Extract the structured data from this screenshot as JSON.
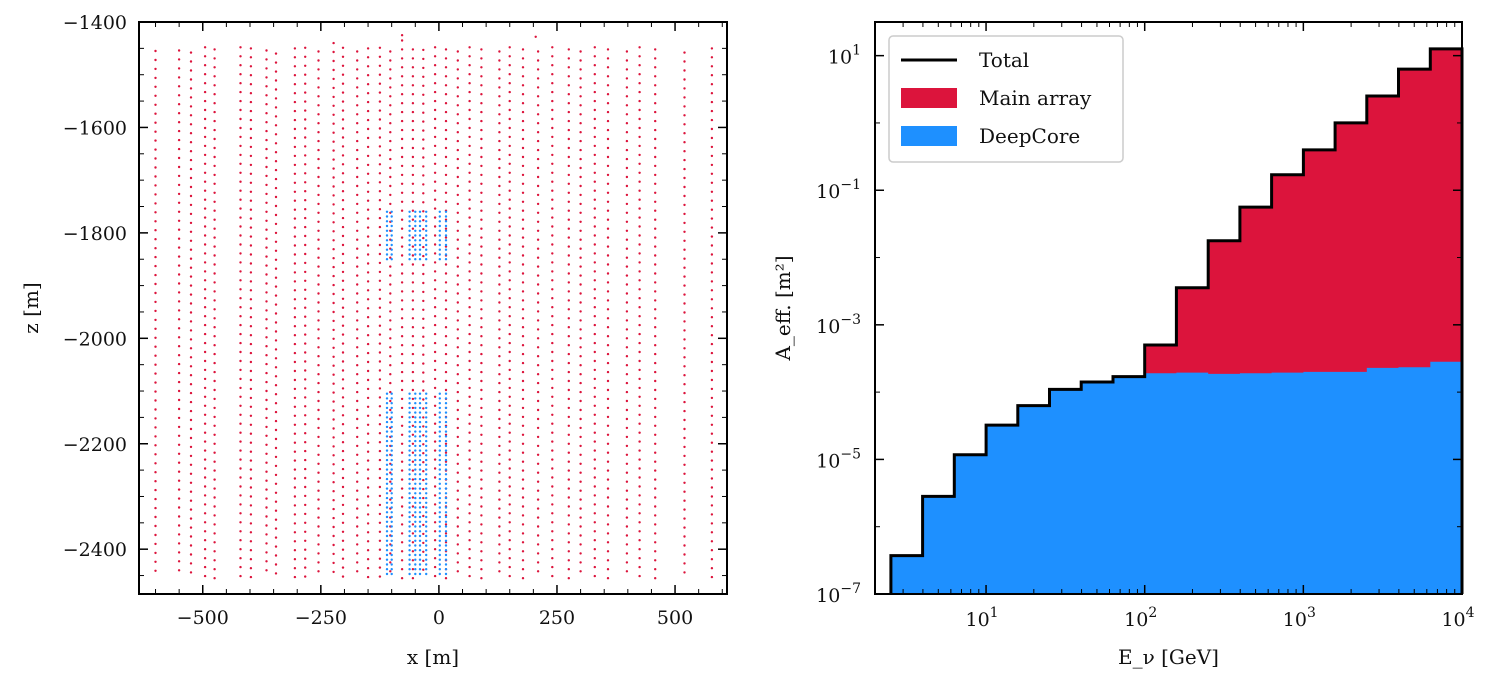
{
  "chart_data": [
    {
      "type": "scatter",
      "title": "",
      "xlabel": "x  [m]",
      "ylabel": "z  [m]",
      "xlim": [
        -635,
        610
      ],
      "ylim": [
        -2485,
        -1400
      ],
      "xticks": [
        -500,
        -250,
        0,
        250,
        500
      ],
      "xtick_labels": [
        "−500",
        "−250",
        "0",
        "250",
        "500"
      ],
      "yticks": [
        -1400,
        -1600,
        -1800,
        -2000,
        -2200,
        -2400
      ],
      "ytick_labels": [
        "−1400",
        "−1600",
        "−1800",
        "−2000",
        "−2200",
        "−2400"
      ],
      "main_array": {
        "color": "#dc143c",
        "z_bottom": -2455,
        "dom_spacing": 17,
        "strings": [
          {
            "x": -600,
            "z_top": -1455
          },
          {
            "x": -550,
            "z_top": -1450
          },
          {
            "x": -525,
            "z_top": -1450
          },
          {
            "x": -495,
            "z_top": -1448
          },
          {
            "x": -475,
            "z_top": -1448
          },
          {
            "x": -420,
            "z_top": -1440
          },
          {
            "x": -398,
            "z_top": -1450
          },
          {
            "x": -365,
            "z_top": -1450
          },
          {
            "x": -345,
            "z_top": -1452
          },
          {
            "x": -305,
            "z_top": -1450
          },
          {
            "x": -283,
            "z_top": -1445
          },
          {
            "x": -255,
            "z_top": -1448
          },
          {
            "x": -223,
            "z_top": -1440
          },
          {
            "x": -203,
            "z_top": -1445
          },
          {
            "x": -173,
            "z_top": -1448
          },
          {
            "x": -150,
            "z_top": -1450
          },
          {
            "x": -125,
            "z_top": -1445
          },
          {
            "x": -103,
            "z_top": -1448
          },
          {
            "x": -78,
            "z_top": -1435
          },
          {
            "x": -55,
            "z_top": -1448
          },
          {
            "x": -33,
            "z_top": -1445
          },
          {
            "x": -8,
            "z_top": -1448
          },
          {
            "x": 15,
            "z_top": -1448
          },
          {
            "x": 40,
            "z_top": -1448
          },
          {
            "x": 65,
            "z_top": -1448
          },
          {
            "x": 90,
            "z_top": -1448
          },
          {
            "x": 128,
            "z_top": -1448
          },
          {
            "x": 150,
            "z_top": -1448
          },
          {
            "x": 178,
            "z_top": -1448
          },
          {
            "x": 210,
            "z_top": -1448
          },
          {
            "x": 240,
            "z_top": -1448
          },
          {
            "x": 275,
            "z_top": -1448
          },
          {
            "x": 300,
            "z_top": -1448
          },
          {
            "x": 330,
            "z_top": -1448
          },
          {
            "x": 358,
            "z_top": -1448
          },
          {
            "x": 398,
            "z_top": -1448
          },
          {
            "x": 425,
            "z_top": -1448
          },
          {
            "x": 458,
            "z_top": -1448
          },
          {
            "x": 520,
            "z_top": -1450
          },
          {
            "x": 578,
            "z_top": -1450
          }
        ],
        "extra_points": [
          {
            "x": -78,
            "z": -1425
          },
          {
            "x": 205,
            "z": -1428
          }
        ]
      },
      "deepcore": {
        "color": "#1e90ff",
        "x": [
          -110,
          -100,
          -62,
          -50,
          -40,
          -27,
          2,
          15
        ],
        "upper_range": [
          -1760,
          -1850
        ],
        "lower_range": [
          -2105,
          -2455
        ],
        "dom_spacing": 9
      }
    },
    {
      "type": "step",
      "title": "",
      "xlabel": "E_ν  [GeV]",
      "ylabel": "A_eff.  [m²]",
      "xscale": "log",
      "yscale": "log",
      "xlim_log10": [
        0.3,
        4.0
      ],
      "ylim_log10": [
        -7,
        1.5
      ],
      "xticks_log10": [
        1,
        2,
        3,
        4
      ],
      "yticks_log10": [
        -7,
        -5,
        -3,
        -1,
        1
      ],
      "x_tick_base": "10",
      "x_tick_exponents": [
        "1",
        "2",
        "3",
        "4"
      ],
      "y_tick_base": "10",
      "y_tick_exponents": [
        "−7",
        "−5",
        "−3",
        "−1",
        "1"
      ],
      "bin_edges_log10": [
        0.4,
        0.6,
        0.8,
        1.0,
        1.2,
        1.4,
        1.6,
        1.8,
        2.0,
        2.2,
        2.4,
        2.6,
        2.8,
        3.0,
        3.2,
        3.4,
        3.6,
        3.8,
        4.0
      ],
      "series": [
        {
          "name": "Total",
          "color": "#000000",
          "log10_values": [
            -6.43,
            -5.55,
            -4.93,
            -4.49,
            -4.2,
            -3.96,
            -3.85,
            -3.77,
            -3.3,
            -2.45,
            -1.75,
            -1.25,
            -0.77,
            -0.4,
            0.0,
            0.4,
            0.8,
            1.1
          ]
        },
        {
          "name": "Main array",
          "color": "#dc143c",
          "log10_values": [
            -6.43,
            -5.55,
            -4.93,
            -4.49,
            -4.2,
            -3.96,
            -3.85,
            -3.77,
            -3.3,
            -2.45,
            -1.75,
            -1.25,
            -0.77,
            -0.4,
            0.0,
            0.4,
            0.8,
            1.1
          ]
        },
        {
          "name": "DeepCore",
          "color": "#1e90ff",
          "log10_values": [
            -6.43,
            -5.55,
            -4.93,
            -4.49,
            -4.2,
            -3.96,
            -3.85,
            -3.77,
            -3.72,
            -3.71,
            -3.73,
            -3.72,
            -3.71,
            -3.7,
            -3.7,
            -3.64,
            -3.63,
            -3.55
          ]
        }
      ],
      "legend": {
        "position": "upper-left",
        "entries": [
          {
            "label": "Total",
            "color": "#000000",
            "kind": "line"
          },
          {
            "label": "Main array",
            "color": "#dc143c",
            "kind": "patch"
          },
          {
            "label": "DeepCore",
            "color": "#1e90ff",
            "kind": "patch"
          }
        ]
      }
    }
  ]
}
